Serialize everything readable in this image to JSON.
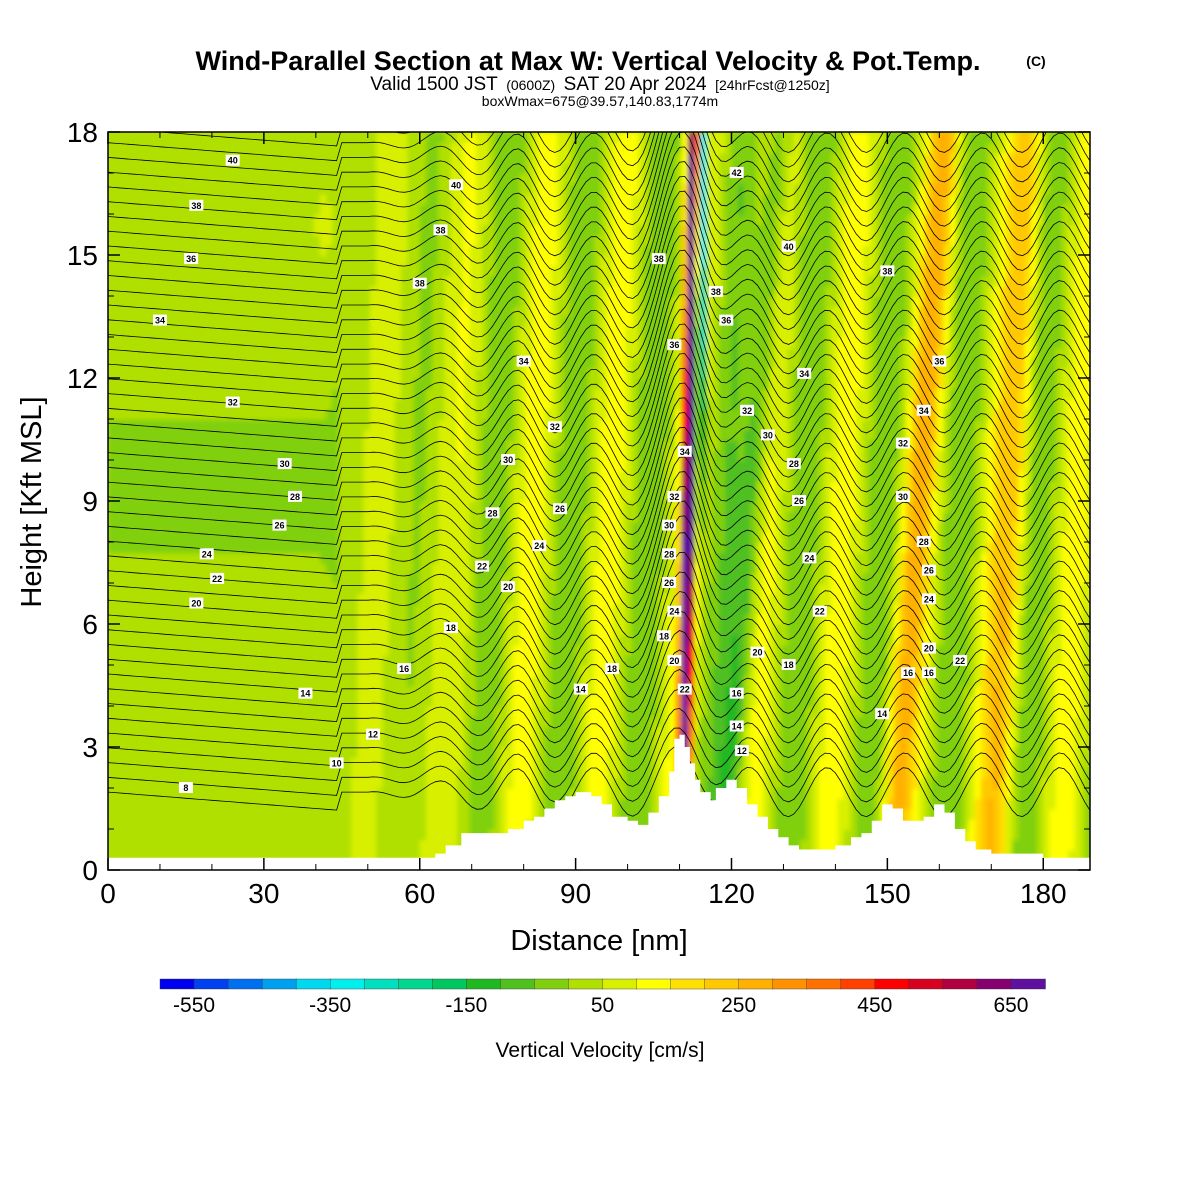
{
  "chart_data": {
    "type": "heatmap",
    "title": "Wind-Parallel Section at Max W: Vertical Velocity & Pot.Temp.",
    "title_mark": "(C)",
    "subtitle_parts": [
      "Valid 1500 JST",
      "(0600Z)",
      "SAT 20 Apr 2024",
      "[24hrFcst@1250z]"
    ],
    "note": "boxWmax=675@39.57,140.83,1774m",
    "xlabel": "Distance [nm]",
    "ylabel": "Height [Kft MSL]",
    "xlim": [
      0,
      189
    ],
    "ylim": [
      0,
      18
    ],
    "xticks": [
      "0",
      "30",
      "60",
      "90",
      "120",
      "150",
      "180"
    ],
    "yticks": [
      "0",
      "3",
      "6",
      "9",
      "12",
      "15",
      "18"
    ],
    "colorbar": {
      "title": "Vertical Velocity [cm/s]",
      "min": -600,
      "max": 700,
      "step": 50,
      "tick_labels": [
        "-550",
        "-350",
        "-150",
        "50",
        "250",
        "450",
        "650"
      ],
      "colors": [
        "#0000f0",
        "#0040f0",
        "#0070f0",
        "#00a0f0",
        "#00d8f0",
        "#00f0f0",
        "#00e0c0",
        "#00d890",
        "#00c860",
        "#20b820",
        "#50c020",
        "#80d010",
        "#b0e000",
        "#d8f000",
        "#ffff00",
        "#ffe000",
        "#ffc800",
        "#ffb000",
        "#ff9000",
        "#ff7000",
        "#ff4000",
        "#ff0000",
        "#d80020",
        "#b00040",
        "#880070",
        "#6010a0"
      ]
    },
    "contour_field": "Potential temperature",
    "contour_labels": [
      {
        "text": "40",
        "x": 24,
        "y": 17.3
      },
      {
        "text": "38",
        "x": 17,
        "y": 16.2
      },
      {
        "text": "36",
        "x": 16,
        "y": 14.9
      },
      {
        "text": "34",
        "x": 10,
        "y": 13.4
      },
      {
        "text": "32",
        "x": 24,
        "y": 11.4
      },
      {
        "text": "30",
        "x": 34,
        "y": 9.9
      },
      {
        "text": "28",
        "x": 36,
        "y": 9.1
      },
      {
        "text": "26",
        "x": 33,
        "y": 8.4
      },
      {
        "text": "24",
        "x": 19,
        "y": 7.7
      },
      {
        "text": "22",
        "x": 21,
        "y": 7.1
      },
      {
        "text": "20",
        "x": 17,
        "y": 6.5
      },
      {
        "text": "14",
        "x": 38,
        "y": 4.3
      },
      {
        "text": "12",
        "x": 51,
        "y": 3.3
      },
      {
        "text": "10",
        "x": 44,
        "y": 2.6
      },
      {
        "text": "8",
        "x": 15,
        "y": 2.0
      },
      {
        "text": "16",
        "x": 57,
        "y": 4.9
      },
      {
        "text": "18",
        "x": 66,
        "y": 5.9
      },
      {
        "text": "40",
        "x": 67,
        "y": 16.7
      },
      {
        "text": "38",
        "x": 64,
        "y": 15.6
      },
      {
        "text": "38",
        "x": 60,
        "y": 14.3
      },
      {
        "text": "34",
        "x": 80,
        "y": 12.4
      },
      {
        "text": "32",
        "x": 86,
        "y": 10.8
      },
      {
        "text": "30",
        "x": 77,
        "y": 10.0
      },
      {
        "text": "28",
        "x": 74,
        "y": 8.7
      },
      {
        "text": "26",
        "x": 87,
        "y": 8.8
      },
      {
        "text": "24",
        "x": 83,
        "y": 7.9
      },
      {
        "text": "22",
        "x": 72,
        "y": 7.4
      },
      {
        "text": "20",
        "x": 77,
        "y": 6.9
      },
      {
        "text": "18",
        "x": 97,
        "y": 4.9
      },
      {
        "text": "14",
        "x": 91,
        "y": 4.4
      },
      {
        "text": "38",
        "x": 106,
        "y": 14.9
      },
      {
        "text": "36",
        "x": 109,
        "y": 12.8
      },
      {
        "text": "34",
        "x": 111,
        "y": 10.2
      },
      {
        "text": "32",
        "x": 109,
        "y": 9.1
      },
      {
        "text": "30",
        "x": 108,
        "y": 8.4
      },
      {
        "text": "28",
        "x": 108,
        "y": 7.7
      },
      {
        "text": "26",
        "x": 108,
        "y": 7.0
      },
      {
        "text": "24",
        "x": 109,
        "y": 6.3
      },
      {
        "text": "18",
        "x": 107,
        "y": 5.7
      },
      {
        "text": "20",
        "x": 109,
        "y": 5.1
      },
      {
        "text": "22",
        "x": 111,
        "y": 4.4
      },
      {
        "text": "42",
        "x": 121,
        "y": 17.0
      },
      {
        "text": "40",
        "x": 131,
        "y": 15.2
      },
      {
        "text": "38",
        "x": 117,
        "y": 14.1
      },
      {
        "text": "36",
        "x": 119,
        "y": 13.4
      },
      {
        "text": "34",
        "x": 134,
        "y": 12.1
      },
      {
        "text": "32",
        "x": 123,
        "y": 11.2
      },
      {
        "text": "30",
        "x": 127,
        "y": 10.6
      },
      {
        "text": "28",
        "x": 132,
        "y": 9.9
      },
      {
        "text": "26",
        "x": 133,
        "y": 9.0
      },
      {
        "text": "24",
        "x": 135,
        "y": 7.6
      },
      {
        "text": "22",
        "x": 137,
        "y": 6.3
      },
      {
        "text": "20",
        "x": 125,
        "y": 5.3
      },
      {
        "text": "18",
        "x": 131,
        "y": 5.0
      },
      {
        "text": "16",
        "x": 121,
        "y": 4.3
      },
      {
        "text": "14",
        "x": 121,
        "y": 3.5
      },
      {
        "text": "12",
        "x": 122,
        "y": 2.9
      },
      {
        "text": "38",
        "x": 150,
        "y": 14.6
      },
      {
        "text": "36",
        "x": 160,
        "y": 12.4
      },
      {
        "text": "34",
        "x": 157,
        "y": 11.2
      },
      {
        "text": "32",
        "x": 153,
        "y": 10.4
      },
      {
        "text": "30",
        "x": 153,
        "y": 9.1
      },
      {
        "text": "28",
        "x": 157,
        "y": 8.0
      },
      {
        "text": "26",
        "x": 158,
        "y": 7.3
      },
      {
        "text": "24",
        "x": 158,
        "y": 6.6
      },
      {
        "text": "20",
        "x": 158,
        "y": 5.4
      },
      {
        "text": "16",
        "x": 154,
        "y": 4.8
      },
      {
        "text": "16",
        "x": 158,
        "y": 4.8
      },
      {
        "text": "22",
        "x": 164,
        "y": 5.1
      },
      {
        "text": "14",
        "x": 149,
        "y": 3.8
      }
    ]
  }
}
